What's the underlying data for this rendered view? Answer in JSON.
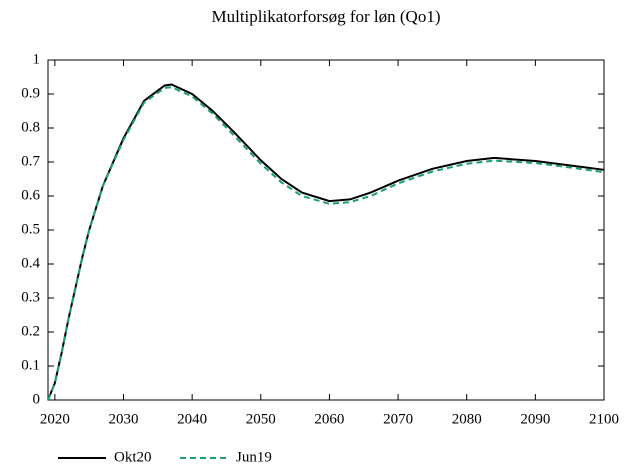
{
  "chart_data": {
    "type": "line",
    "title": "Multiplikatorforsøg for løn (Qo1)",
    "x": [
      2019,
      2020,
      2021,
      2022,
      2023,
      2024,
      2025,
      2027,
      2030,
      2033,
      2036,
      2037,
      2040,
      2043,
      2046,
      2050,
      2053,
      2056,
      2060,
      2063,
      2066,
      2070,
      2075,
      2080,
      2084,
      2090,
      2095,
      2100
    ],
    "series": [
      {
        "name": "Okt20",
        "color": "#000000",
        "dash": false,
        "values": [
          0,
          0.05,
          0.14,
          0.24,
          0.33,
          0.42,
          0.5,
          0.63,
          0.77,
          0.88,
          0.925,
          0.928,
          0.9,
          0.85,
          0.79,
          0.705,
          0.65,
          0.61,
          0.585,
          0.59,
          0.61,
          0.645,
          0.68,
          0.703,
          0.712,
          0.703,
          0.69,
          0.677
        ]
      },
      {
        "name": "Jun19",
        "color": "#1a9e77",
        "dash": true,
        "values": [
          0,
          0.05,
          0.14,
          0.24,
          0.33,
          0.42,
          0.5,
          0.63,
          0.765,
          0.875,
          0.918,
          0.92,
          0.893,
          0.842,
          0.78,
          0.695,
          0.64,
          0.6,
          0.577,
          0.582,
          0.6,
          0.637,
          0.672,
          0.695,
          0.704,
          0.697,
          0.684,
          0.67
        ]
      }
    ],
    "xlim": [
      2019,
      2100
    ],
    "xticks": [
      2020,
      2030,
      2040,
      2050,
      2060,
      2070,
      2080,
      2090,
      2100
    ],
    "ylim": [
      0,
      1
    ],
    "yticks": [
      0,
      0.1,
      0.2,
      0.3,
      0.4,
      0.5,
      0.6,
      0.7,
      0.8,
      0.9,
      1
    ]
  }
}
